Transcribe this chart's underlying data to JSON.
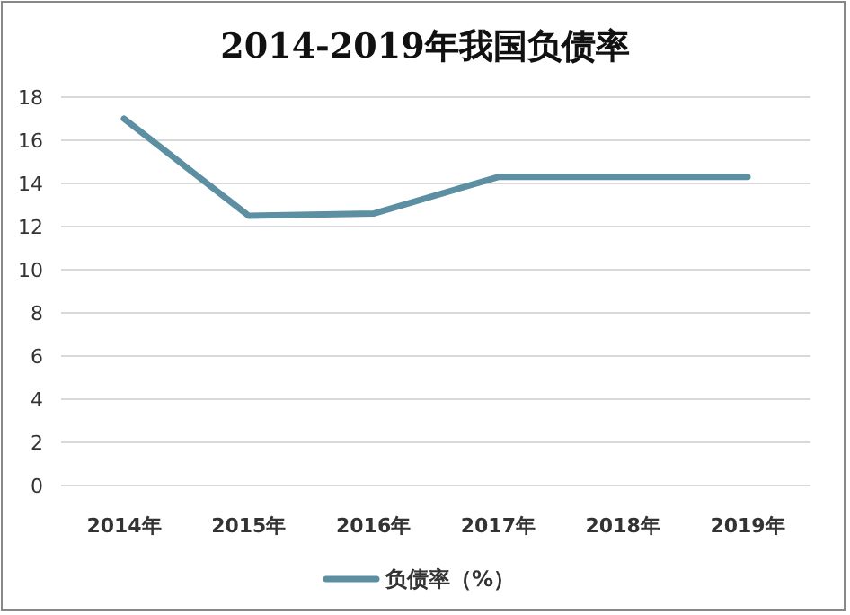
{
  "chart_data": {
    "type": "line",
    "title": "2014-2019年我国负债率",
    "categories": [
      "2014年",
      "2015年",
      "2016年",
      "2017年",
      "2018年",
      "2019年"
    ],
    "series": [
      {
        "name": "负债率（%）",
        "color": "#5b8fa1",
        "values": [
          17.0,
          12.5,
          12.6,
          14.3,
          14.3,
          14.3
        ]
      }
    ],
    "ylim": [
      0,
      18
    ],
    "yticks": [
      0,
      2,
      4,
      6,
      8,
      10,
      12,
      14,
      16,
      18
    ],
    "grid": "y",
    "legend": "bottom",
    "marker": "none"
  }
}
